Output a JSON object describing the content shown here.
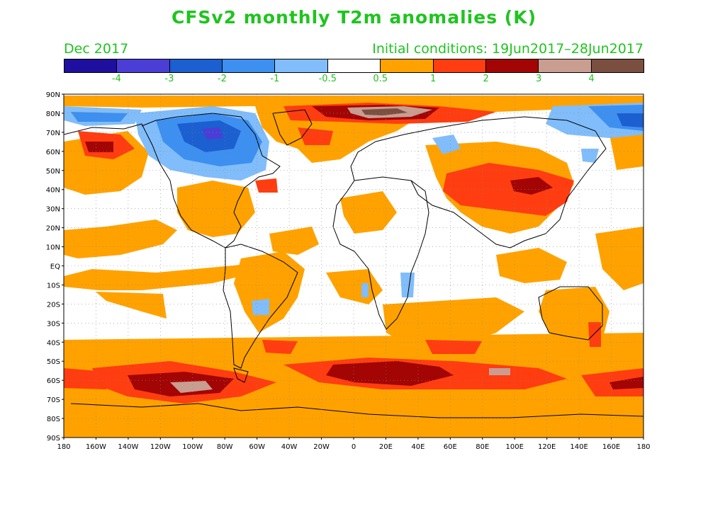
{
  "title": "CFSv2 monthly T2m anomalies (K)",
  "subtitle_left": "Dec 2017",
  "subtitle_right": "Initial conditions: 19Jun2017–28Jun2017",
  "colorbar": {
    "colors": [
      "#1e0f9e",
      "#4a3ed6",
      "#1b5fd0",
      "#3d8ff0",
      "#80bdfa",
      "#ffffff",
      "#ffa200",
      "#ff3d10",
      "#a30505",
      "#c99d90",
      "#7a4f40"
    ],
    "labels": [
      "-4",
      "-3",
      "-2",
      "-1",
      "-0.5",
      "0.5",
      "1",
      "2",
      "3",
      "4"
    ]
  },
  "lat_labels": [
    "90N",
    "80N",
    "70N",
    "60N",
    "50N",
    "40N",
    "30N",
    "20N",
    "10N",
    "EQ",
    "10S",
    "20S",
    "30S",
    "40S",
    "50S",
    "60S",
    "70S",
    "80S",
    "90S"
  ],
  "lon_labels": [
    "180",
    "160W",
    "140W",
    "120W",
    "100W",
    "80W",
    "60W",
    "40W",
    "20W",
    "0",
    "20E",
    "40E",
    "60E",
    "80E",
    "100E",
    "120E",
    "140E",
    "160E",
    "180"
  ]
}
